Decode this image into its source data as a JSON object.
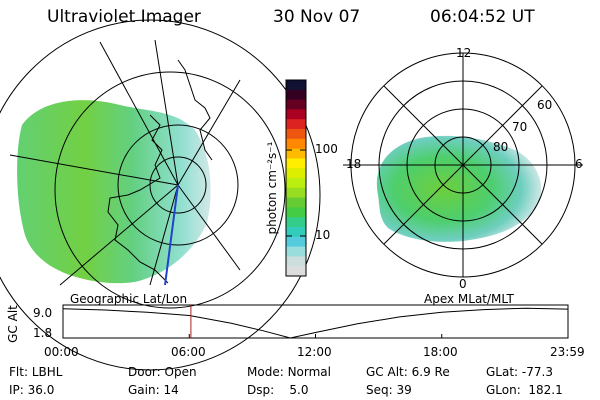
{
  "header": {
    "instrument": "Ultraviolet Imager",
    "date": "30 Nov 07",
    "time": "06:04:52 UT"
  },
  "geographic_panel": {
    "caption": "Geographic Lat/Lon"
  },
  "apex_panel": {
    "caption": "Apex MLat/MLT",
    "lat_labels": [
      "60",
      "70",
      "80"
    ],
    "mlt_labels": {
      "top": "12",
      "bottom": "0",
      "left": "18",
      "right": "6"
    }
  },
  "colorbar": {
    "unit_label": "photon cm⁻²s⁻¹",
    "tick_labels": [
      "100",
      "10"
    ],
    "colors": [
      "#111133",
      "#330022",
      "#660022",
      "#aa0022",
      "#dd2222",
      "#ee5511",
      "#ff8800",
      "#ffbb00",
      "#ffee00",
      "#ddee00",
      "#bbee11",
      "#99dd22",
      "#66cc33",
      "#44cc44",
      "#33cc88",
      "#33ccbb",
      "#55ccdd",
      "#99dddd",
      "#ccdddd",
      "#dddddd"
    ]
  },
  "altitude_plot": {
    "y_title": "GC Alt",
    "y_ticks": [
      "9.0",
      "1.8"
    ],
    "x_ticks": [
      "00:00",
      "06:00",
      "12:00",
      "18:00",
      "23:59"
    ],
    "current_time_hours": 6.08,
    "orbit": {
      "x_hours": [
        0,
        2,
        4,
        6,
        8,
        9.5,
        10.8,
        12,
        14,
        16,
        18,
        20,
        22,
        23.98
      ],
      "alt_re": [
        8.2,
        7.9,
        7.4,
        6.7,
        5.0,
        3.4,
        1.8,
        3.0,
        4.9,
        6.4,
        7.4,
        8.0,
        8.3,
        8.1
      ]
    }
  },
  "footer": {
    "row1": [
      {
        "label": "Flt:",
        "value": "LBHL"
      },
      {
        "label": "Door:",
        "value": "Open"
      },
      {
        "label": "Mode:",
        "value": "Normal"
      },
      {
        "label": "GC Alt:",
        "value": "6.9 Re"
      },
      {
        "label": "GLat:",
        "value": "-77.3"
      }
    ],
    "row2": [
      {
        "label": "IP:",
        "value": "36.0"
      },
      {
        "label": "Gain:",
        "value": "14"
      },
      {
        "label": "Dsp:",
        "value": "5.0"
      },
      {
        "label": "Seq:",
        "value": "39"
      },
      {
        "label": "GLon:",
        "value": "182.1"
      }
    ]
  },
  "colors": {
    "grid": "#000000",
    "orbit_marker": "#aa2222",
    "meridian": "#2244cc"
  }
}
